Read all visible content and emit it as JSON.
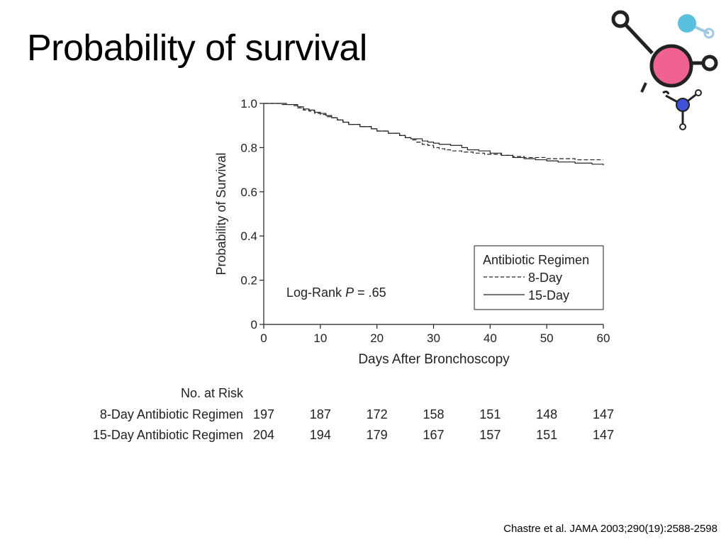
{
  "slide": {
    "title": "Probability of survival",
    "citation": "Chastre et al. JAMA 2003;290(19):2588-2598"
  },
  "logo": {
    "colors": {
      "pink": "#f06292",
      "blue": "#3f51d4",
      "cyan": "#5bc0de",
      "stroke": "#222222"
    }
  },
  "chart_data": {
    "type": "line",
    "title": "",
    "xlabel": "Days After Bronchoscopy",
    "ylabel": "Probability of Survival",
    "xlim": [
      0,
      60
    ],
    "ylim": [
      0,
      1.0
    ],
    "xticks": [
      0,
      10,
      20,
      30,
      40,
      50,
      60
    ],
    "yticks": [
      0,
      0.2,
      0.4,
      0.6,
      0.8,
      1.0
    ],
    "ytick_labels": [
      "0",
      "0.2",
      "0.4",
      "0.6",
      "0.8",
      "1.0"
    ],
    "legend": {
      "title": "Antibiotic Regimen",
      "position": "lower-right",
      "entries": [
        "8-Day",
        "15-Day"
      ]
    },
    "annotation": {
      "prefix": "Log-Rank ",
      "italic": "P",
      "suffix": " = .65"
    },
    "series": [
      {
        "name": "8-Day",
        "style": "dashed",
        "x": [
          0,
          3,
          5,
          6,
          7,
          8,
          9,
          10,
          11,
          12,
          13,
          14,
          15,
          17,
          19,
          20,
          22,
          24,
          25,
          26,
          27,
          28,
          29,
          30,
          31,
          32,
          33,
          35,
          37,
          39,
          40,
          42,
          44,
          46,
          48,
          50,
          52,
          55,
          58,
          60
        ],
        "y": [
          1.0,
          0.995,
          0.99,
          0.98,
          0.97,
          0.965,
          0.955,
          0.95,
          0.94,
          0.935,
          0.925,
          0.915,
          0.905,
          0.895,
          0.885,
          0.875,
          0.865,
          0.855,
          0.845,
          0.835,
          0.825,
          0.815,
          0.81,
          0.8,
          0.795,
          0.79,
          0.785,
          0.78,
          0.775,
          0.77,
          0.77,
          0.765,
          0.76,
          0.755,
          0.755,
          0.75,
          0.75,
          0.745,
          0.745,
          0.745
        ]
      },
      {
        "name": "15-Day",
        "style": "solid",
        "x": [
          0,
          4,
          6,
          7,
          8,
          9,
          10,
          11,
          12,
          13,
          14,
          15,
          17,
          19,
          20,
          22,
          24,
          25,
          26,
          28,
          29,
          30,
          31,
          33,
          35,
          36,
          38,
          40,
          42,
          44,
          46,
          48,
          50,
          52,
          55,
          58,
          60
        ],
        "y": [
          1.0,
          0.995,
          0.985,
          0.975,
          0.97,
          0.96,
          0.955,
          0.945,
          0.935,
          0.925,
          0.915,
          0.905,
          0.895,
          0.885,
          0.875,
          0.865,
          0.855,
          0.845,
          0.84,
          0.83,
          0.825,
          0.82,
          0.815,
          0.81,
          0.8,
          0.79,
          0.785,
          0.775,
          0.765,
          0.755,
          0.75,
          0.745,
          0.74,
          0.735,
          0.73,
          0.725,
          0.72
        ]
      }
    ],
    "risk_table": {
      "header": "No. at Risk",
      "rows": [
        {
          "label": "8-Day Antibiotic Regimen",
          "values": [
            "197",
            "187",
            "172",
            "158",
            "151",
            "148",
            "147"
          ]
        },
        {
          "label": "15-Day Antibiotic Regimen",
          "values": [
            "204",
            "194",
            "179",
            "167",
            "157",
            "151",
            "147"
          ]
        }
      ]
    }
  }
}
